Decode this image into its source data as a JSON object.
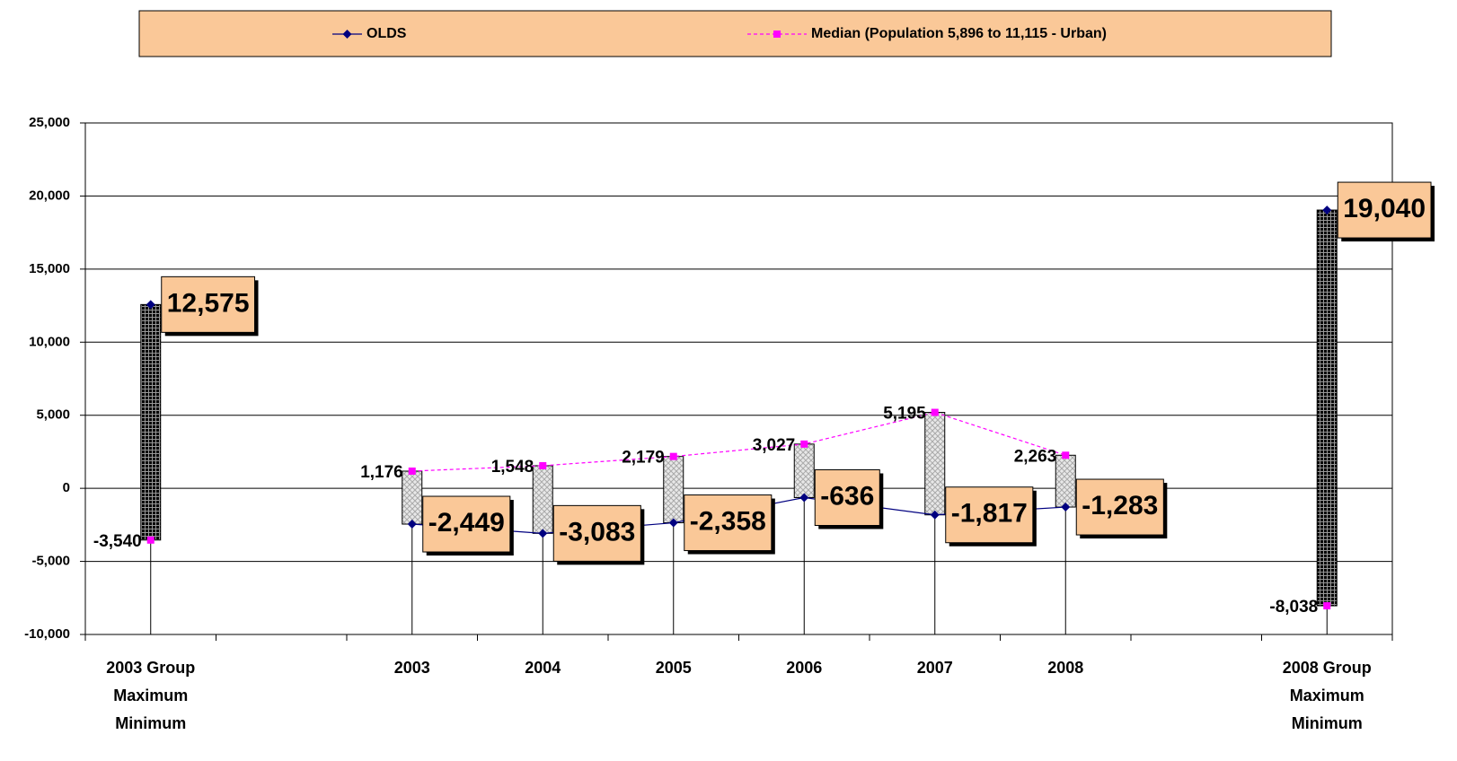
{
  "chart_data": {
    "type": "line",
    "categories": [
      [
        "2003 Group",
        "Maximum",
        "Minimum"
      ],
      null,
      "2003",
      "2004",
      "2005",
      "2006",
      "2007",
      "2008",
      null,
      [
        "2008 Group",
        "Maximum",
        "Minimum"
      ]
    ],
    "series": [
      {
        "name": "OLDS",
        "color": "#000080",
        "marker": "diamond",
        "dash": false,
        "values": [
          12575,
          null,
          -2449,
          -3083,
          -2358,
          -636,
          -1817,
          -1283,
          null,
          19040
        ],
        "value_labels": [
          "12,575",
          null,
          "-2,449",
          "-3,083",
          "-2,358",
          "-636",
          "-1,817",
          "-1,283",
          null,
          "19,040"
        ]
      },
      {
        "name": "Median (Population 5,896 to 11,115 - Urban)",
        "color": "#ff00ff",
        "marker": "square",
        "dash": true,
        "values": [
          -3540,
          null,
          1176,
          1548,
          2179,
          3027,
          5195,
          2263,
          null,
          -8038
        ],
        "value_labels": [
          "-3,540",
          null,
          "1,176",
          "1,548",
          "2,179",
          "3,027",
          "5,195",
          "2,263",
          null,
          "-8,038"
        ]
      }
    ],
    "ylim": [
      -10000,
      25000
    ],
    "yticks": [
      {
        "value": -10000,
        "label": "-10,000"
      },
      {
        "value": -5000,
        "label": "-5,000"
      },
      0,
      {
        "value": 5000,
        "label": "5,000"
      },
      {
        "value": 10000,
        "label": "10,000"
      },
      {
        "value": 15000,
        "label": "15,000"
      },
      {
        "value": 20000,
        "label": "20,000"
      },
      {
        "value": 25000,
        "label": "25,000"
      }
    ],
    "grid": true,
    "legend": "top",
    "up_down_bars": true,
    "drop_lines": true
  }
}
